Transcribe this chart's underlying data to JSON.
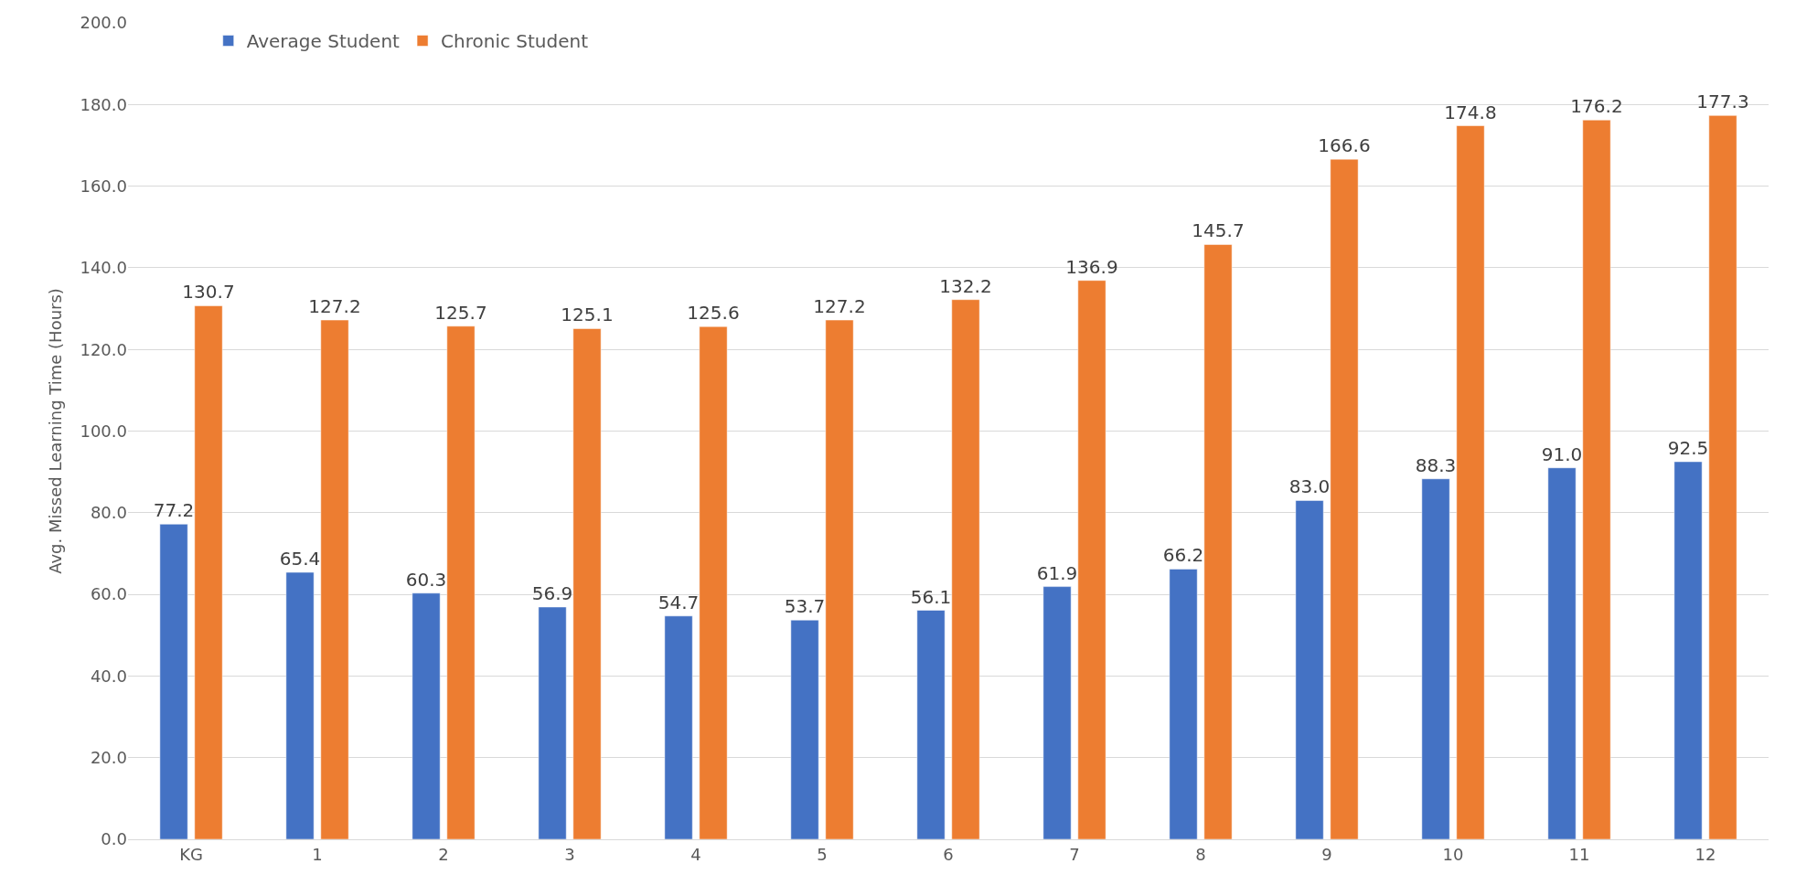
{
  "chart_data": {
    "type": "bar",
    "ylabel": "Avg. Missed Learning Time (Hours)",
    "categories": [
      "KG",
      "1",
      "2",
      "3",
      "4",
      "5",
      "6",
      "7",
      "8",
      "9",
      "10",
      "11",
      "12"
    ],
    "series": [
      {
        "name": "Average Student",
        "color": "#4472c4",
        "values": [
          77.2,
          65.4,
          60.3,
          56.9,
          54.7,
          53.7,
          56.1,
          61.9,
          66.2,
          83.0,
          88.3,
          91.0,
          92.5
        ],
        "value_labels": [
          "77.2",
          "65.4",
          "60.3",
          "56.9",
          "54.7",
          "53.7",
          "56.1",
          "61.9",
          "66.2",
          "83.0",
          "88.3",
          "91.0",
          "92.5"
        ]
      },
      {
        "name": "Chronic Student",
        "color": "#ed7d31",
        "values": [
          130.7,
          127.2,
          125.7,
          125.1,
          125.6,
          127.2,
          132.2,
          136.9,
          145.7,
          166.6,
          174.8,
          176.2,
          177.3
        ],
        "value_labels": [
          "130.7",
          "127.2",
          "125.7",
          "125.1",
          "125.6",
          "127.2",
          "132.2",
          "136.9",
          "145.7",
          "166.6",
          "174.8",
          "176.2",
          "177.3"
        ]
      }
    ],
    "ylim": [
      0,
      200
    ],
    "yticks": [
      {
        "value": 0,
        "label": "0.0"
      },
      {
        "value": 20,
        "label": "20.0"
      },
      {
        "value": 40,
        "label": "40.0"
      },
      {
        "value": 60,
        "label": "60.0"
      },
      {
        "value": 80,
        "label": "80.0"
      },
      {
        "value": 100,
        "label": "100.0"
      },
      {
        "value": 120,
        "label": "120.0"
      },
      {
        "value": 140,
        "label": "140.0"
      },
      {
        "value": 160,
        "label": "160.0"
      },
      {
        "value": 180,
        "label": "180.0"
      },
      {
        "value": 200,
        "label": "200.0"
      }
    ],
    "grid": "y",
    "legend": "top left"
  }
}
